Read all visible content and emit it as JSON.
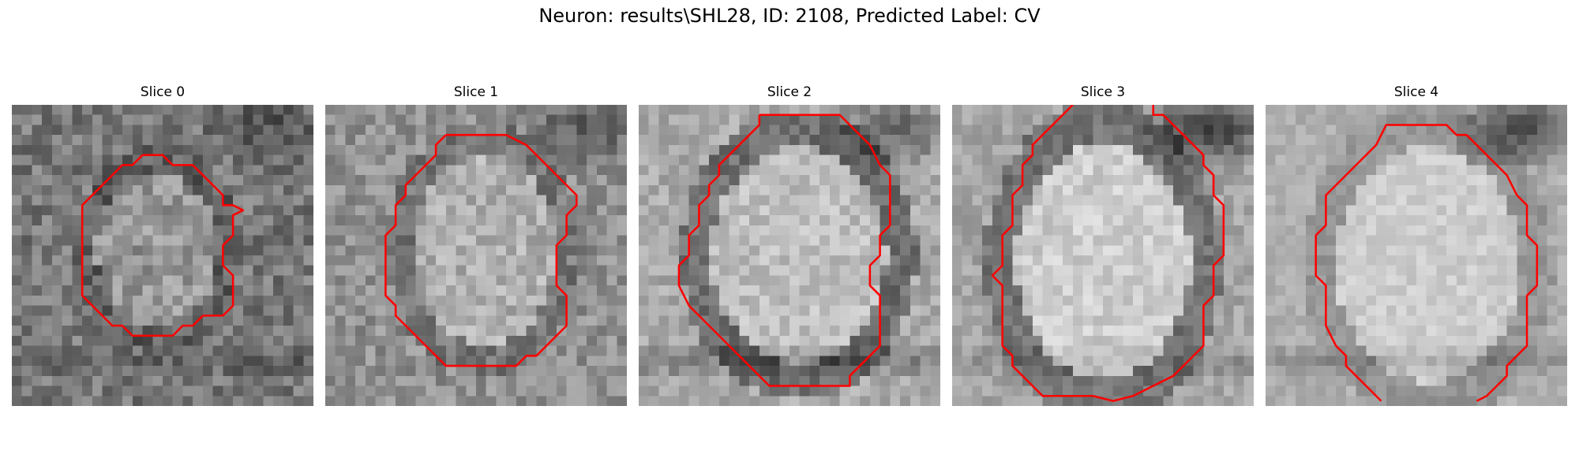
{
  "figure": {
    "title": "Neuron: results\\SHL28, ID: 2108, Predicted Label: CV"
  },
  "panels": [
    {
      "title": "Slice 0"
    },
    {
      "title": "Slice 1"
    },
    {
      "title": "Slice 2"
    },
    {
      "title": "Slice 3"
    },
    {
      "title": "Slice 4"
    }
  ],
  "colors": {
    "contour": "#ff0000",
    "background": "#ffffff",
    "text": "#000000",
    "image_colormap": "grayscale"
  }
}
